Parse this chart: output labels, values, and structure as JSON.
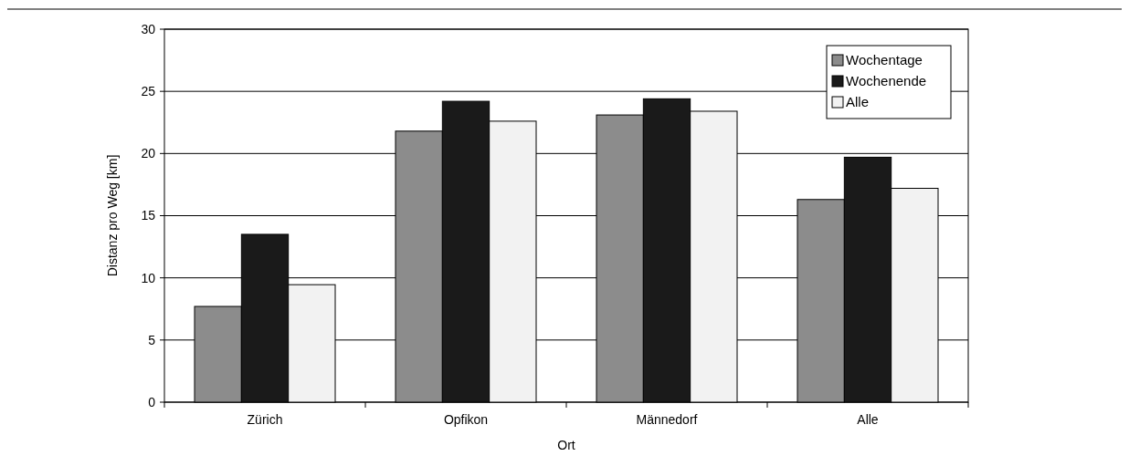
{
  "chart_data": {
    "type": "bar",
    "xlabel": "Ort",
    "ylabel": "Distanz pro Weg [km]",
    "categories": [
      "Zürich",
      "Opfikon",
      "Männedorf",
      "Alle"
    ],
    "series": [
      {
        "name": "Wochentage",
        "color": "#8c8c8c",
        "values": [
          7.7,
          21.8,
          23.1,
          16.3
        ]
      },
      {
        "name": "Wochenende",
        "color": "#1a1a1a",
        "values": [
          13.5,
          24.2,
          24.4,
          19.7
        ]
      },
      {
        "name": "Alle",
        "color": "#f2f2f2",
        "values": [
          9.45,
          22.6,
          23.4,
          17.2
        ]
      }
    ],
    "ylim": [
      0,
      30
    ],
    "yticks": [
      0,
      5,
      10,
      15,
      20,
      25,
      30
    ],
    "grid": "y",
    "legend": "top right"
  }
}
